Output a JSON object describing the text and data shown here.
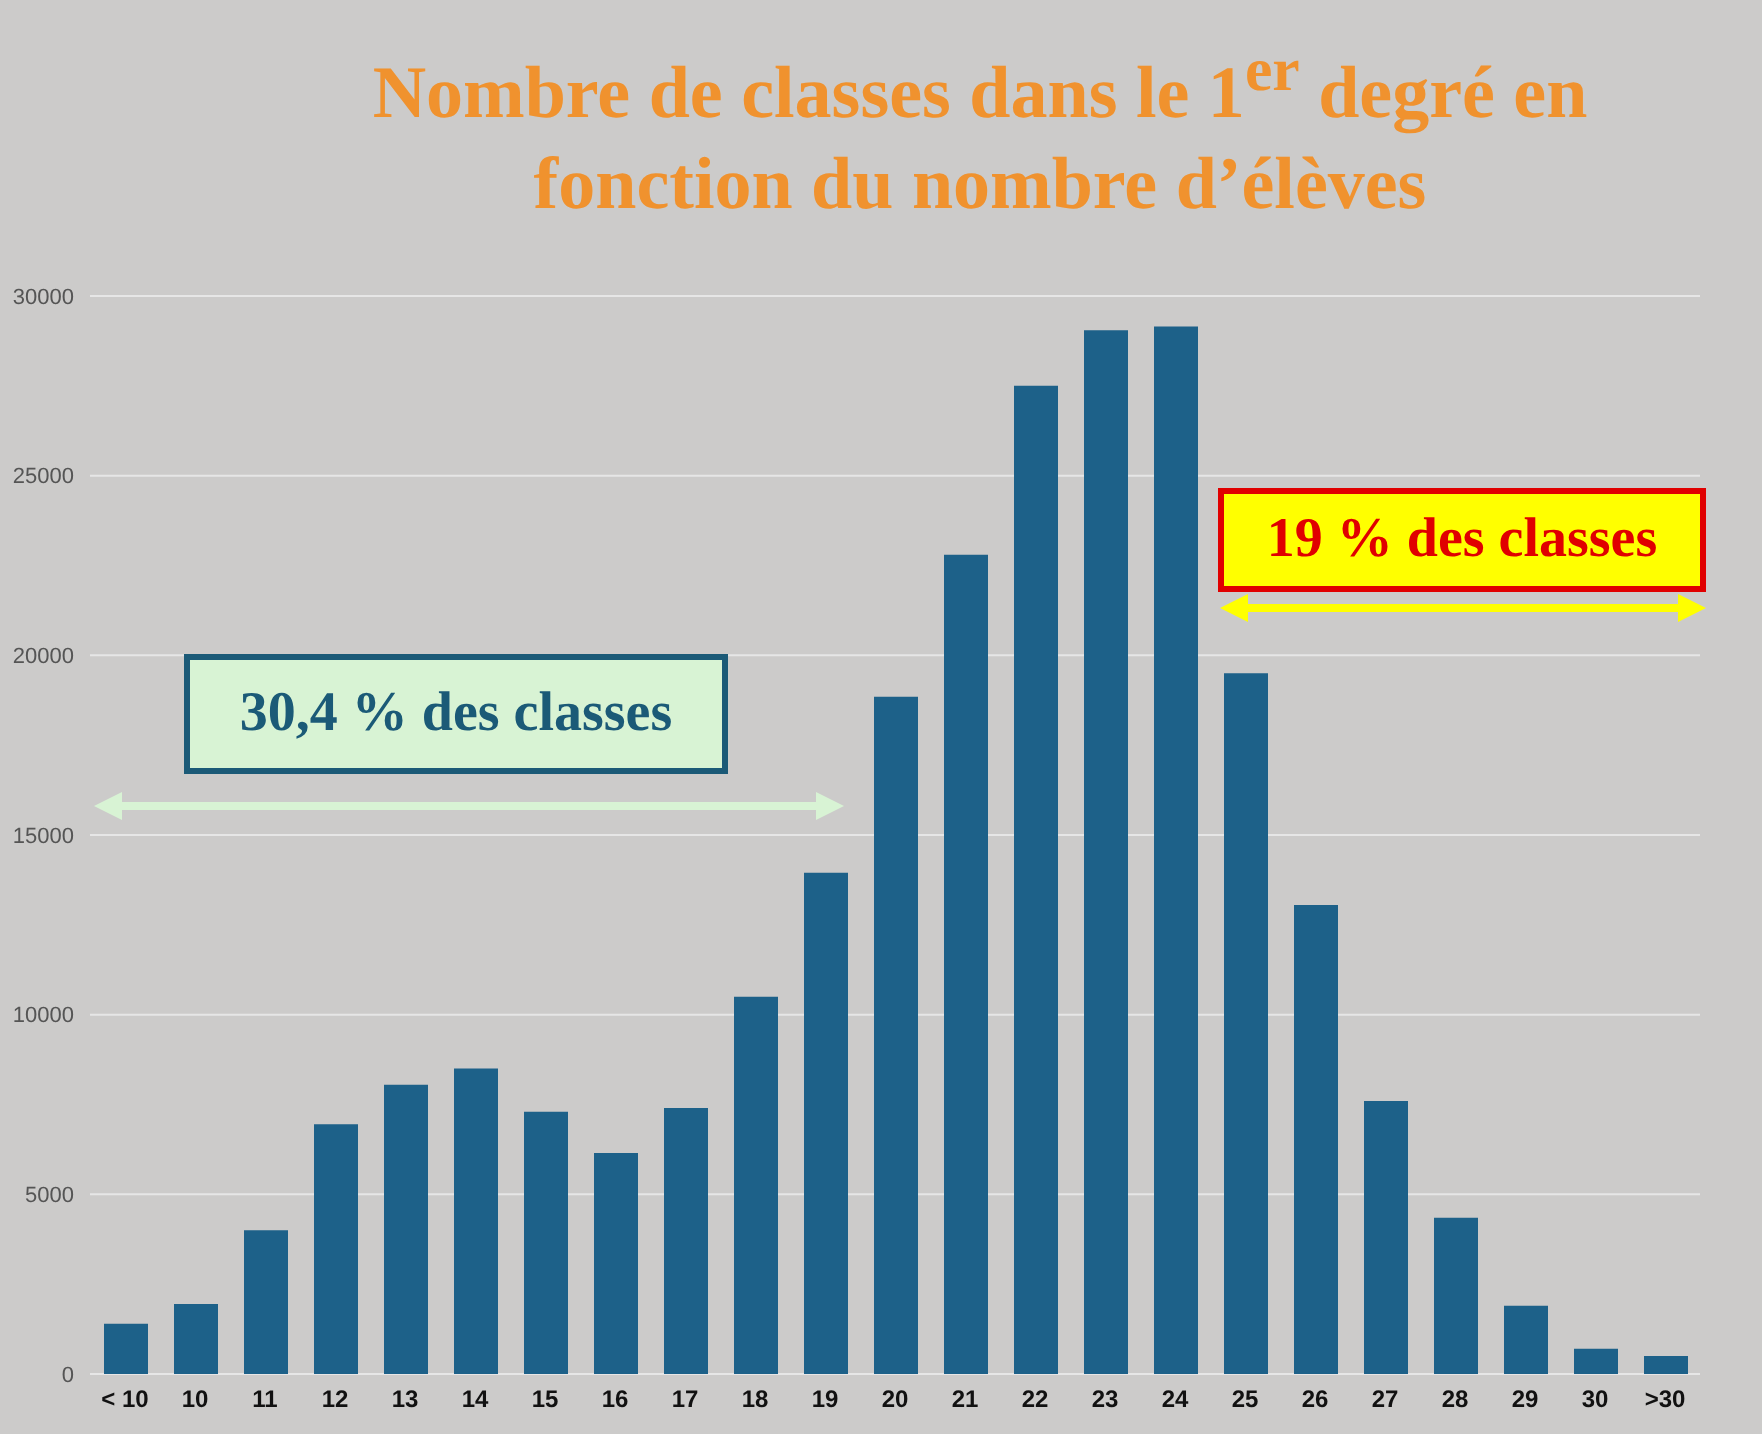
{
  "chart_data": {
    "type": "bar",
    "title": "Nombre de classes dans le 1$^{er}$ degré en fonction du nombre d’élèves",
    "categories": [
      "< 10",
      "10",
      "11",
      "12",
      "13",
      "14",
      "15",
      "16",
      "17",
      "18",
      "19",
      "20",
      "21",
      "22",
      "23",
      "24",
      "25",
      "26",
      "27",
      "28",
      "29",
      "30",
      ">30"
    ],
    "values": [
      1400,
      1950,
      4000,
      6950,
      8050,
      8500,
      7300,
      6150,
      7400,
      10500,
      13950,
      18850,
      22800,
      27500,
      29050,
      29150,
      19500,
      13050,
      7600,
      4350,
      1900,
      700,
      500
    ],
    "color": "#1d6189",
    "ylim": [
      0,
      30000
    ],
    "yticks": [
      0,
      5000,
      10000,
      15000,
      20000,
      25000,
      30000
    ],
    "grid": "y",
    "annotations": [
      "30,4 % des classes",
      "19 % des classes"
    ]
  }
}
